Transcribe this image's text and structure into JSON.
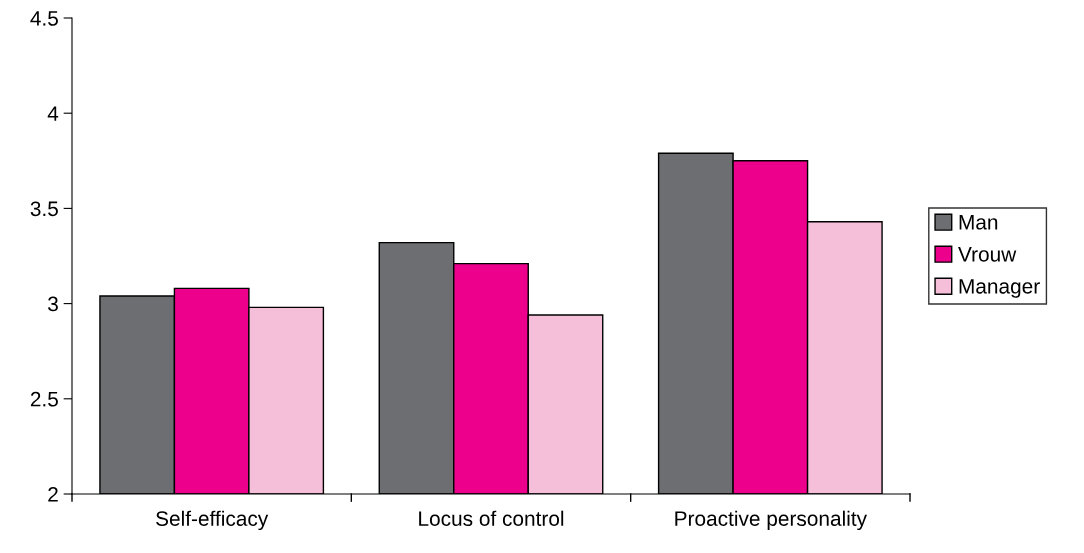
{
  "chart_data": {
    "type": "bar",
    "categories": [
      "Self-efficacy",
      "Locus of control",
      "Proactive personality"
    ],
    "series": [
      {
        "name": "Man",
        "color": "#6d6e71",
        "values": [
          3.04,
          3.32,
          3.79
        ]
      },
      {
        "name": "Vrouw",
        "color": "#ec008c",
        "values": [
          3.08,
          3.21,
          3.75
        ]
      },
      {
        "name": "Manager",
        "color": "#f6bfd9",
        "values": [
          2.98,
          2.94,
          3.43
        ]
      }
    ],
    "ylim": [
      2,
      4.5
    ],
    "yticks": [
      2,
      2.5,
      3,
      3.5,
      4,
      4.5
    ],
    "grid": false,
    "legend": "right"
  }
}
